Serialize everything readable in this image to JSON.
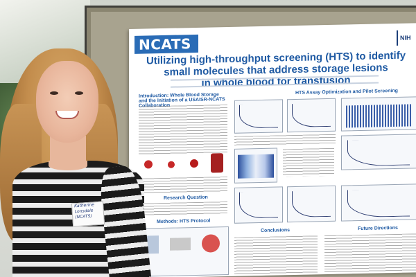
{
  "poster": {
    "logo": "NCATS",
    "nih": "NIH",
    "title_line1": "Utilizing high-throughput screening (HTS) to identify small molecules that address storage lesions",
    "title_line2": "in whole blood for transfusion",
    "section_intro": "Introduction: Whole Blood Storage and the Initiation of a USAISR-NCATS Collaboration",
    "section_assay": "HTS Assay Optimization and Pilot Screening",
    "section_methods": "Methods: HTS Protocol",
    "section_research": "Research Question",
    "section_conclusions": "Conclusions",
    "section_future": "Future Directions"
  },
  "nametag": {
    "line1": "Katherine",
    "line2": "Lonsdale",
    "line3": "(NCATS)"
  },
  "colors": {
    "poster_blue": "#1f5aa3",
    "logo_bg": "#2a6cb6",
    "shirt_dark": "#1b1b1b"
  }
}
